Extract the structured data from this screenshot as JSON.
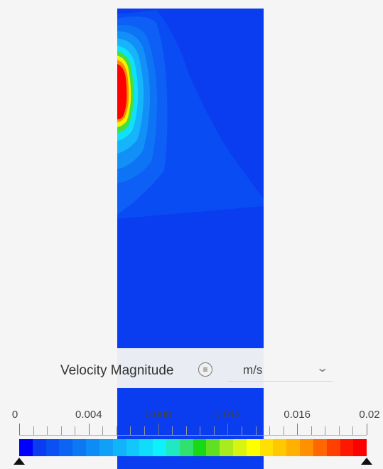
{
  "legend": {
    "title": "Velocity Magnitude",
    "menu_icon": "≡",
    "unit": "m/s",
    "chevron": "⌄",
    "tick_labels": [
      "0",
      "0.004",
      "0.008",
      "0.012",
      "0.016",
      "0.02"
    ],
    "range": [
      0,
      0.02
    ],
    "colors": [
      "#0000ff",
      "#0a3cf0",
      "#0a50f2",
      "#0b64f3",
      "#0c78f4",
      "#0e8cf6",
      "#10a0f8",
      "#12b4f9",
      "#12c8fb",
      "#10dcfc",
      "#0ef0fb",
      "#20e8c0",
      "#30e070",
      "#18d818",
      "#60e020",
      "#a8ec20",
      "#d8f410",
      "#ffff00",
      "#ffe000",
      "#ffc800",
      "#ffb000",
      "#ff9000",
      "#ff6800",
      "#ff4000",
      "#ff1800",
      "#ff0000"
    ]
  },
  "field_colors": {
    "background": "#0a3cf0",
    "low": "#0050f0",
    "mid_low": "#1078f6",
    "mid": "#16a8fa",
    "cyan": "#10e0f8",
    "green": "#40e040",
    "yellow": "#ffee00",
    "orange": "#ff8000",
    "red": "#ff0000"
  }
}
